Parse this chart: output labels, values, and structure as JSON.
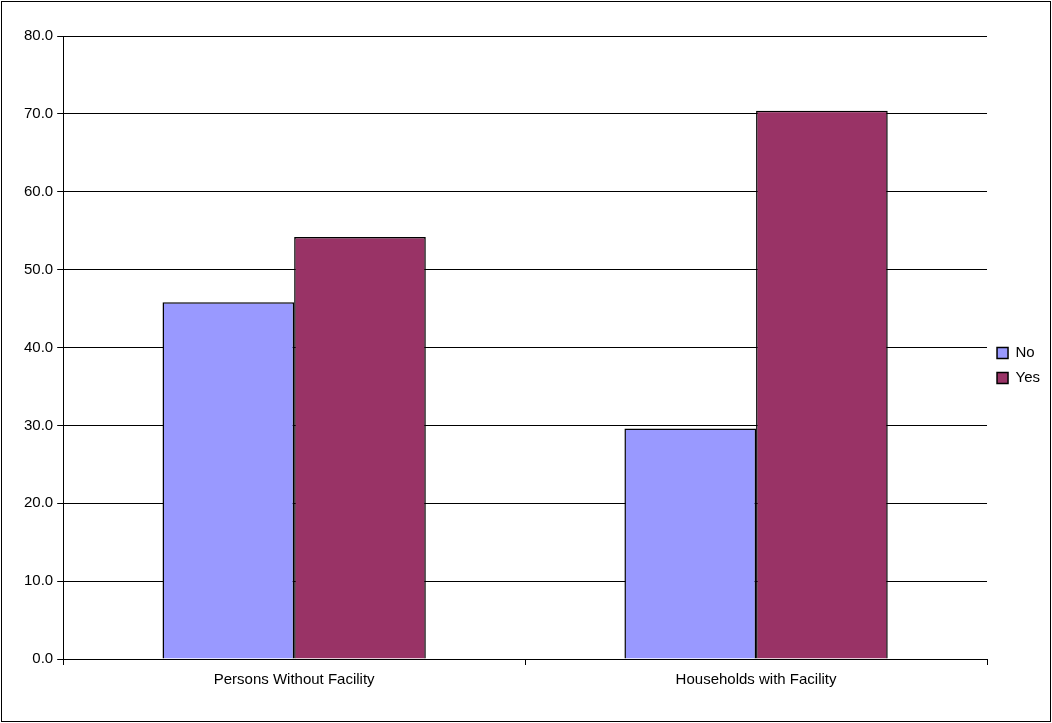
{
  "chart_data": {
    "type": "bar",
    "categories": [
      "Persons Without Facility",
      "Households with Facility"
    ],
    "series": [
      {
        "name": "No",
        "color": "#9999ff",
        "values": [
          45.8,
          29.6
        ]
      },
      {
        "name": "Yes",
        "color": "#993366",
        "values": [
          54.2,
          70.4
        ]
      }
    ],
    "ylim": [
      0,
      80
    ],
    "yticks": [
      {
        "value": 0,
        "label": "0.0"
      },
      {
        "value": 10,
        "label": "10.0"
      },
      {
        "value": 20,
        "label": "20.0"
      },
      {
        "value": 30,
        "label": "30.0"
      },
      {
        "value": 40,
        "label": "40.0"
      },
      {
        "value": 50,
        "label": "50.0"
      },
      {
        "value": 60,
        "label": "60.0"
      },
      {
        "value": 70,
        "label": "70.0"
      },
      {
        "value": 80,
        "label": "80.0"
      }
    ],
    "grid": "y",
    "legend": "right"
  }
}
